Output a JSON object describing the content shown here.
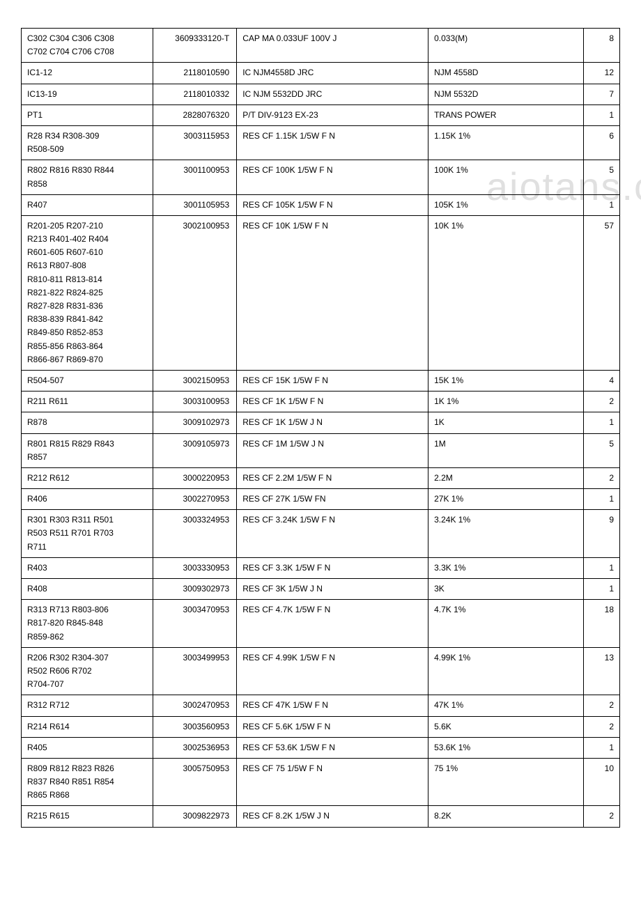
{
  "watermark_text": "aiotans.c",
  "table": {
    "column_widths": [
      "22%",
      "14%",
      "32%",
      "26%",
      "6%"
    ],
    "border_color": "#000000",
    "font_size": 12,
    "rows": [
      {
        "refs": [
          "C302 C304 C306 C308",
          "C702 C704 C706 C708"
        ],
        "part": "3609333120-T",
        "desc": "CAP MA 0.033UF 100V J",
        "spec": "0.033(M)",
        "qty": "8"
      },
      {
        "refs": [
          "IC1-12"
        ],
        "part": "2118010590",
        "desc": "IC NJM4558D JRC",
        "spec": "NJM 4558D",
        "qty": "12"
      },
      {
        "refs": [
          "IC13-19"
        ],
        "part": "2118010332",
        "desc": "IC NJM 5532DD JRC",
        "spec": "NJM 5532D",
        "qty": "7"
      },
      {
        "refs": [
          "PT1"
        ],
        "part": "2828076320",
        "desc": "P/T DIV-9123 EX-23",
        "spec": "TRANS POWER",
        "qty": "1"
      },
      {
        "refs": [
          "R28 R34 R308-309",
          "R508-509"
        ],
        "part": "3003115953",
        "desc": "RES CF 1.15K 1/5W F N",
        "spec": "1.15K 1%",
        "qty": "6"
      },
      {
        "refs": [
          "R802 R816 R830 R844",
          "R858"
        ],
        "part": "3001100953",
        "desc": "RES CF 100K 1/5W F N",
        "spec": "100K 1%",
        "qty": "5"
      },
      {
        "refs": [
          "R407"
        ],
        "part": "3001105953",
        "desc": "RES CF 105K 1/5W F N",
        "spec": "105K 1%",
        "qty": "1"
      },
      {
        "refs": [
          "R201-205 R207-210",
          "R213 R401-402 R404",
          "R601-605 R607-610",
          "R613 R807-808",
          "R810-811 R813-814",
          "R821-822 R824-825",
          "R827-828 R831-836",
          "R838-839 R841-842",
          "R849-850 R852-853",
          "R855-856 R863-864",
          "R866-867 R869-870"
        ],
        "part": "3002100953",
        "desc": "RES CF 10K 1/5W F N",
        "spec": "10K 1%",
        "qty": "57"
      },
      {
        "refs": [
          "R504-507"
        ],
        "part": "3002150953",
        "desc": "RES CF 15K 1/5W F N",
        "spec": "15K 1%",
        "qty": "4"
      },
      {
        "refs": [
          "R211 R611"
        ],
        "part": "3003100953",
        "desc": "RES CF 1K 1/5W F N",
        "spec": "1K 1%",
        "qty": "2"
      },
      {
        "refs": [
          "R878"
        ],
        "part": "3009102973",
        "desc": "RES CF 1K 1/5W J N",
        "spec": "1K",
        "qty": "1"
      },
      {
        "refs": [
          "R801 R815 R829 R843",
          "R857"
        ],
        "part": "3009105973",
        "desc": "RES CF 1M 1/5W J N",
        "spec": "1M",
        "qty": "5"
      },
      {
        "refs": [
          "R212 R612"
        ],
        "part": "3000220953",
        "desc": "RES CF 2.2M 1/5W F N",
        "spec": "2.2M",
        "qty": "2"
      },
      {
        "refs": [
          "R406"
        ],
        "part": "3002270953",
        "desc": "RES CF 27K 1/5W FN",
        "spec": "27K 1%",
        "qty": "1"
      },
      {
        "refs": [
          "R301 R303 R311 R501",
          "R503 R511 R701 R703",
          "R711"
        ],
        "part": "3003324953",
        "desc": "RES CF 3.24K 1/5W F N",
        "spec": "3.24K 1%",
        "qty": "9"
      },
      {
        "refs": [
          "R403"
        ],
        "part": "3003330953",
        "desc": "RES CF 3.3K 1/5W F N",
        "spec": "3.3K 1%",
        "qty": "1"
      },
      {
        "refs": [
          "R408"
        ],
        "part": "3009302973",
        "desc": "RES CF 3K 1/5W J N",
        "spec": "3K",
        "qty": "1"
      },
      {
        "refs": [
          "R313 R713 R803-806",
          "R817-820 R845-848",
          "R859-862"
        ],
        "part": "3003470953",
        "desc": "RES CF 4.7K 1/5W F N",
        "spec": "4.7K 1%",
        "qty": "18"
      },
      {
        "refs": [
          "R206 R302 R304-307",
          "R502 R606 R702",
          "R704-707"
        ],
        "part": "3003499953",
        "desc": "RES CF 4.99K 1/5W F N",
        "spec": "4.99K 1%",
        "qty": "13"
      },
      {
        "refs": [
          "R312 R712"
        ],
        "part": "3002470953",
        "desc": "RES CF 47K 1/5W F N",
        "spec": "47K 1%",
        "qty": "2"
      },
      {
        "refs": [
          "R214 R614"
        ],
        "part": "3003560953",
        "desc": "RES CF 5.6K 1/5W F N",
        "spec": "5.6K",
        "qty": "2"
      },
      {
        "refs": [
          "R405"
        ],
        "part": "3002536953",
        "desc": "RES CF 53.6K 1/5W F N",
        "spec": "53.6K 1%",
        "qty": "1"
      },
      {
        "refs": [
          "R809 R812 R823 R826",
          "R837 R840 R851 R854",
          "R865 R868"
        ],
        "part": "3005750953",
        "desc": "RES CF 75 1/5W F N",
        "spec": "75 1%",
        "qty": "10"
      },
      {
        "refs": [
          "R215 R615"
        ],
        "part": "3009822973",
        "desc": "RES CF 8.2K 1/5W J N",
        "spec": "8.2K",
        "qty": "2"
      }
    ]
  }
}
